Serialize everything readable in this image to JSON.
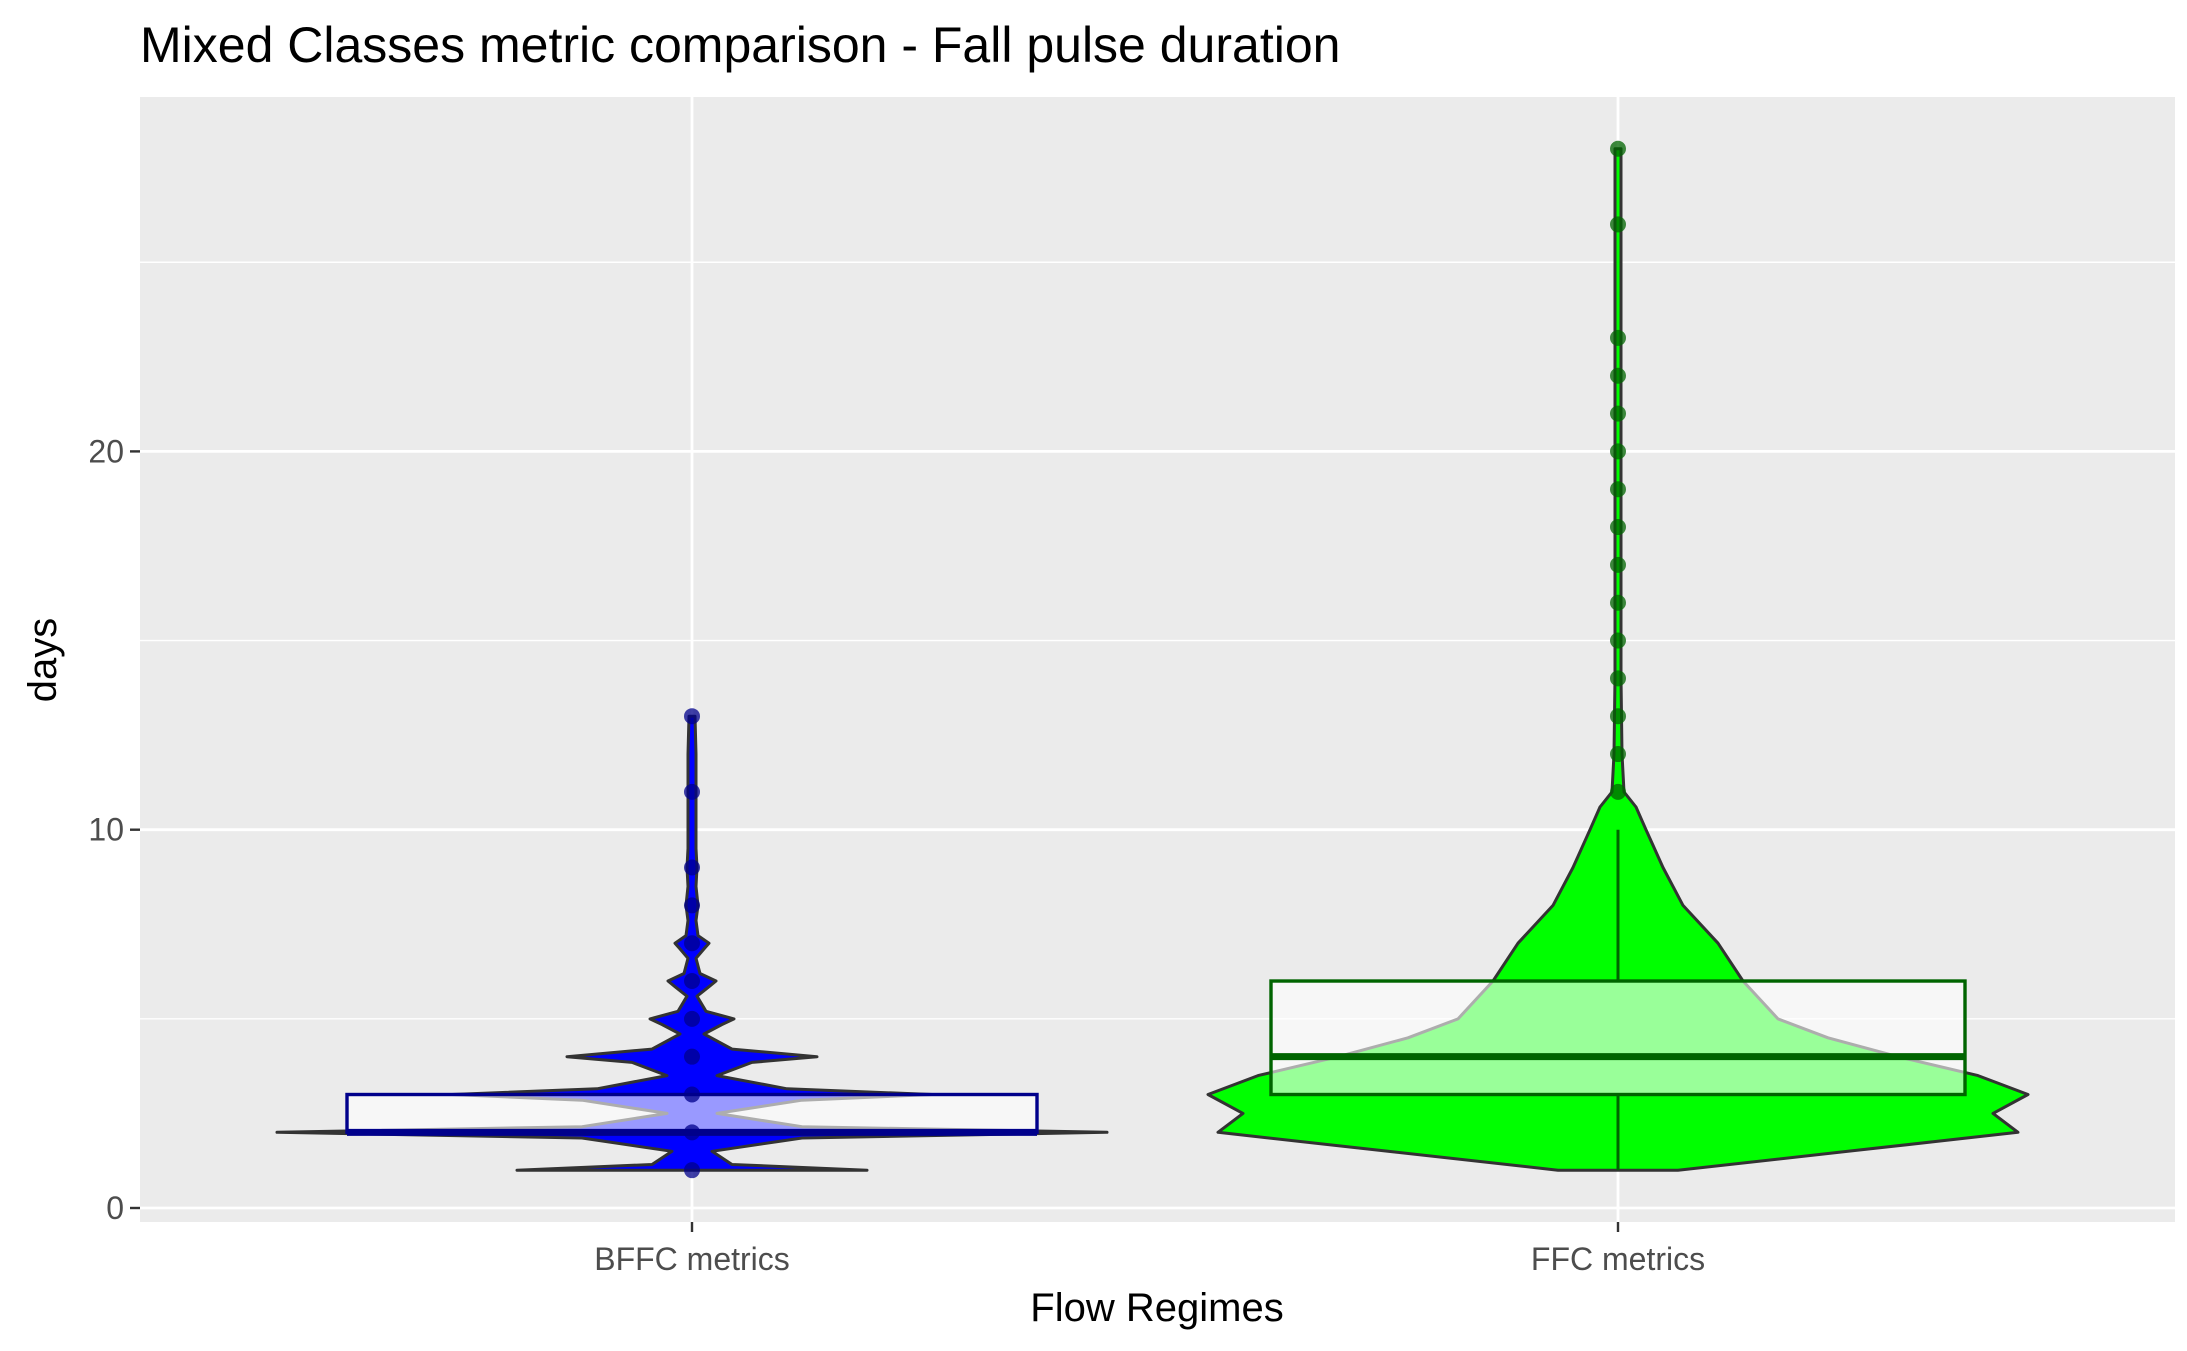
{
  "chart_data": {
    "type": "violin",
    "title": "Mixed Classes metric comparison - Fall pulse duration",
    "xlabel": "Flow Regimes",
    "ylabel": "days",
    "ylim": [
      0,
      28
    ],
    "yticks": [
      0,
      10,
      20
    ],
    "grid": true,
    "legend": "none",
    "categories": [
      "BFFC metrics",
      "FFC metrics"
    ],
    "colors": {
      "panel": "#ebebeb",
      "grid": "#ffffff",
      "bffc_fill": "#0000ff",
      "bffc_box": "#00008b",
      "bffc_point": "#00008b",
      "ffc_fill": "#00ff00",
      "ffc_box": "#006400",
      "ffc_point": "#006400",
      "outline": "#333333"
    },
    "series": [
      {
        "category": "BFFC metrics",
        "box": {
          "min": 2,
          "q1": 2,
          "median": 2,
          "q3": 3,
          "max": 3
        },
        "points": [
          1,
          2,
          3,
          4,
          5,
          6,
          7,
          8,
          9,
          11,
          13
        ]
      },
      {
        "category": "FFC metrics",
        "box": {
          "min": 1,
          "q1": 3,
          "median": 4,
          "q3": 6,
          "max": 10
        },
        "points": [
          11,
          12,
          13,
          14,
          15,
          16,
          17,
          18,
          19,
          20,
          21,
          22,
          23,
          26,
          28
        ]
      }
    ]
  }
}
